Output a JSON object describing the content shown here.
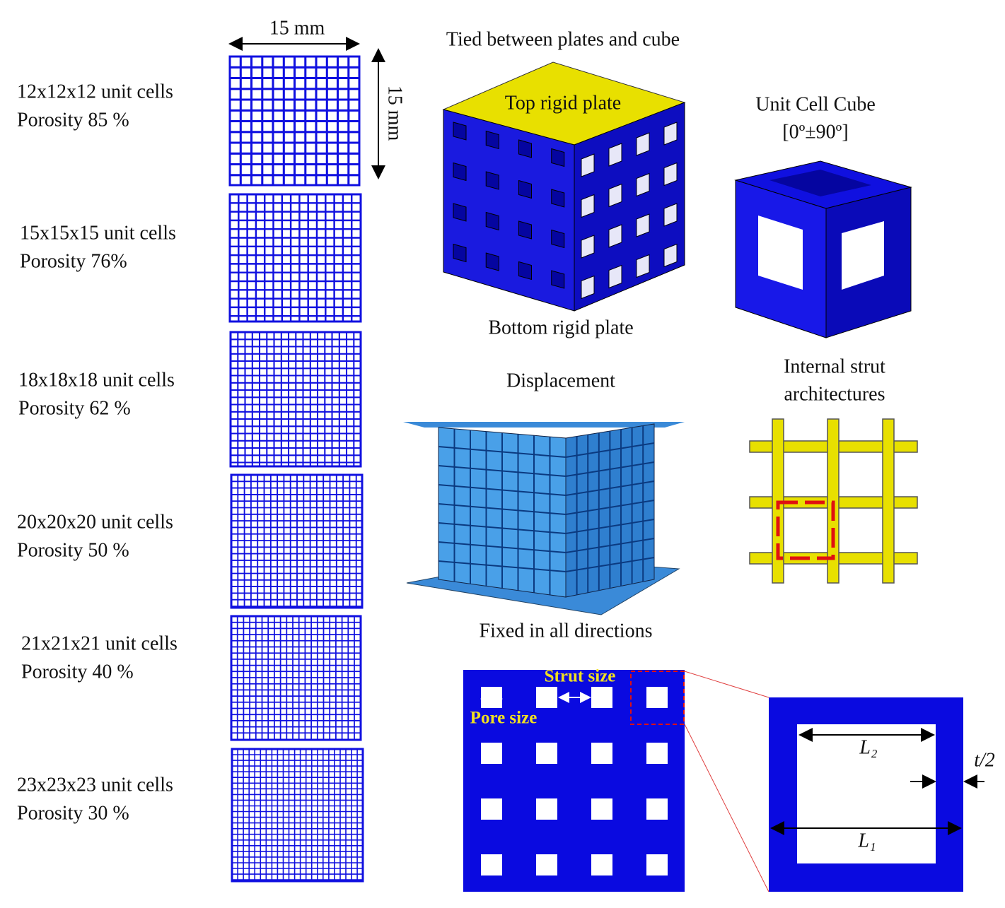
{
  "panels": [
    {
      "label": "12x12x12  unit cells",
      "porosity": "Porosity  85 %"
    },
    {
      "label": "15x15x15  unit cells",
      "porosity": "Porosity  76%"
    },
    {
      "label": "18x18x18  unit cells",
      "porosity": "Porosity  62 %"
    },
    {
      "label": "20x20x20  unit cells",
      "porosity": "Porosity  50 %"
    },
    {
      "label": "21x21x21  unit cells",
      "porosity": "Porosity  40 %"
    },
    {
      "label": "23x23x23  unit cells",
      "porosity": "Porosity  30 %"
    }
  ],
  "dimensions": {
    "width": "15 mm",
    "height": "15 mm"
  },
  "cube": {
    "title": "Tied between plates and cube",
    "top": "Top rigid plate",
    "bottom": "Bottom rigid plate"
  },
  "unit_cell": {
    "title": "Unit Cell Cube",
    "orientation": "[0º±90º]"
  },
  "fe_model": {
    "title": "Displacement",
    "bottom": "Fixed in all directions"
  },
  "strut": {
    "title_lines": [
      "Internal strut",
      "architectures"
    ]
  },
  "section": {
    "strut_size": "Strut size",
    "pore_size": "Pore size",
    "l2": "L₂",
    "l1": "L₁",
    "half_thickness": "t/2"
  }
}
